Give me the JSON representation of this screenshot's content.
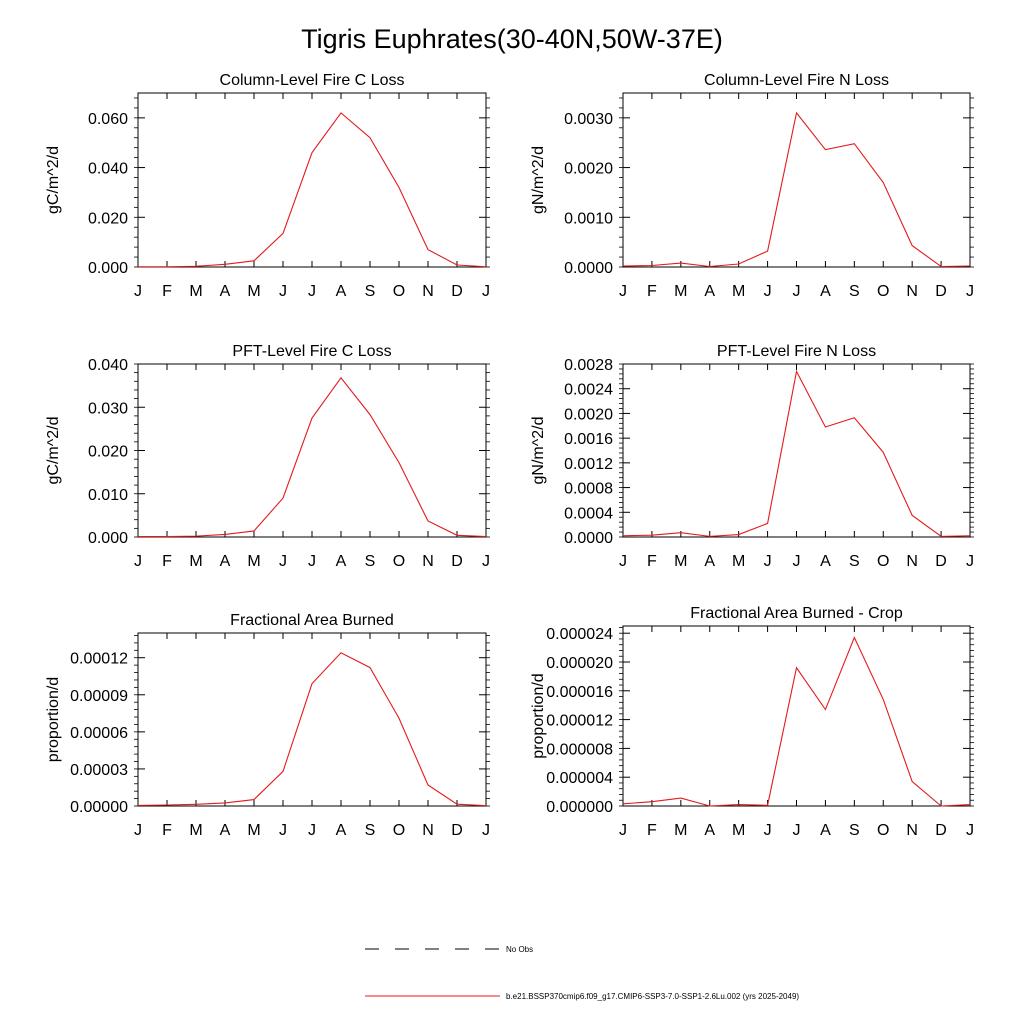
{
  "title": "Tigris Euphrates(30-40N,50W-37E)",
  "legend": {
    "placement": "bottom-center",
    "entries": [
      {
        "label": "No Obs",
        "style": "dashed",
        "color": "#000000"
      },
      {
        "label": "b.e21.BSSP370cmip6.f09_g17.CMIP6-SSP3-7.0-SSP1-2.6Lu.002 (yrs 2025-2049)",
        "style": "solid",
        "color": "#e41a1c"
      }
    ]
  },
  "chart_data": [
    {
      "type": "line",
      "title": "Column-Level Fire C Loss",
      "ylabel": "gC/m^2/d",
      "categories": [
        "J",
        "F",
        "M",
        "A",
        "M",
        "J",
        "J",
        "A",
        "S",
        "O",
        "N",
        "D",
        "J"
      ],
      "ylim": [
        0,
        0.07
      ],
      "yticks": [
        0,
        0.02,
        0.04,
        0.06
      ],
      "ytick_labels": [
        "0.000",
        "0.020",
        "0.040",
        "0.060"
      ],
      "series": [
        {
          "color": "#e41a1c",
          "values": [
            0.0001,
            0.0001,
            0.0003,
            0.0011,
            0.0025,
            0.0135,
            0.046,
            0.062,
            0.052,
            0.032,
            0.007,
            0.0008,
            0.0001
          ]
        }
      ]
    },
    {
      "type": "line",
      "title": "Column-Level Fire N Loss",
      "ylabel": "gN/m^2/d",
      "categories": [
        "J",
        "F",
        "M",
        "A",
        "M",
        "J",
        "J",
        "A",
        "S",
        "O",
        "N",
        "D",
        "J"
      ],
      "ylim": [
        0,
        0.0035
      ],
      "yticks": [
        0,
        0.001,
        0.002,
        0.003
      ],
      "ytick_labels": [
        "0.0000",
        "0.0010",
        "0.0020",
        "0.0030"
      ],
      "series": [
        {
          "color": "#e41a1c",
          "values": [
            2e-05,
            3e-05,
            8e-05,
            1e-05,
            6e-05,
            0.00032,
            0.0031,
            0.00236,
            0.00248,
            0.0017,
            0.00043,
            1e-05,
            2e-05
          ]
        }
      ]
    },
    {
      "type": "line",
      "title": "PFT-Level Fire C Loss",
      "ylabel": "gC/m^2/d",
      "categories": [
        "J",
        "F",
        "M",
        "A",
        "M",
        "J",
        "J",
        "A",
        "S",
        "O",
        "N",
        "D",
        "J"
      ],
      "ylim": [
        0,
        0.04
      ],
      "yticks": [
        0,
        0.01,
        0.02,
        0.03,
        0.04
      ],
      "ytick_labels": [
        "0.000",
        "0.010",
        "0.020",
        "0.030",
        "0.040"
      ],
      "series": [
        {
          "color": "#e41a1c",
          "values": [
            0.0001,
            0.0001,
            0.0002,
            0.0006,
            0.0014,
            0.009,
            0.0275,
            0.0368,
            0.0283,
            0.0172,
            0.0037,
            0.0004,
            0.0001
          ]
        }
      ]
    },
    {
      "type": "line",
      "title": "PFT-Level Fire N Loss",
      "ylabel": "gN/m^2/d",
      "categories": [
        "J",
        "F",
        "M",
        "A",
        "M",
        "J",
        "J",
        "A",
        "S",
        "O",
        "N",
        "D",
        "J"
      ],
      "ylim": [
        0,
        0.0028
      ],
      "yticks": [
        0,
        0.0004,
        0.0008,
        0.0012,
        0.0016,
        0.002,
        0.0024,
        0.0028
      ],
      "ytick_labels": [
        "0.0000",
        "0.0004",
        "0.0008",
        "0.0012",
        "0.0016",
        "0.0020",
        "0.0024",
        "0.0028"
      ],
      "series": [
        {
          "color": "#e41a1c",
          "values": [
            2e-05,
            3e-05,
            7e-05,
            1e-05,
            4e-05,
            0.00022,
            0.00268,
            0.00178,
            0.00193,
            0.00137,
            0.00035,
            1e-05,
            2e-05
          ]
        }
      ]
    },
    {
      "type": "line",
      "title": "Fractional Area Burned",
      "ylabel": "proportion/d",
      "categories": [
        "J",
        "F",
        "M",
        "A",
        "M",
        "J",
        "J",
        "A",
        "S",
        "O",
        "N",
        "D",
        "J"
      ],
      "ylim": [
        0,
        0.00014
      ],
      "yticks": [
        0,
        3e-05,
        6e-05,
        9e-05,
        0.00012
      ],
      "ytick_labels": [
        "0.00000",
        "0.00003",
        "0.00006",
        "0.00009",
        "0.00012"
      ],
      "series": [
        {
          "color": "#e41a1c",
          "values": [
            5e-07,
            8e-07,
            1.4e-06,
            2.5e-06,
            5.2e-06,
            2.8e-05,
            9.9e-05,
            0.000124,
            0.000112,
            7.1e-05,
            1.7e-05,
            1.5e-06,
            3e-07
          ]
        }
      ]
    },
    {
      "type": "line",
      "title": "Fractional Area Burned - Crop",
      "ylabel": "proportion/d",
      "categories": [
        "J",
        "F",
        "M",
        "A",
        "M",
        "J",
        "J",
        "A",
        "S",
        "O",
        "N",
        "D",
        "J"
      ],
      "ylim": [
        0,
        2.5e-05
      ],
      "yticks": [
        0,
        4e-06,
        8e-06,
        1.2e-05,
        1.6e-05,
        2e-05,
        2.4e-05
      ],
      "ytick_labels": [
        "0.000000",
        "0.000004",
        "0.000008",
        "0.000012",
        "0.000016",
        "0.000020",
        "0.000024"
      ],
      "series": [
        {
          "color": "#e41a1c",
          "values": [
            3e-07,
            6e-07,
            1.1e-06,
            0.0,
            2e-07,
            1e-07,
            1.92e-05,
            1.34e-05,
            2.34e-05,
            1.48e-05,
            3.4e-06,
            0.0,
            2e-07
          ]
        }
      ]
    }
  ]
}
